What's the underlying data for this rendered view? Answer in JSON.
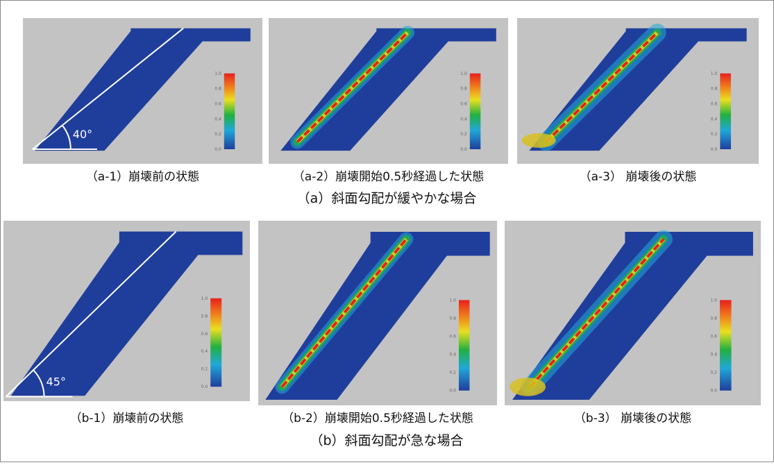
{
  "figure": {
    "rows": [
      {
        "caption": "（a）斜面勾配が緩やかな場合",
        "panels": [
          {
            "caption": "（a-1）崩壊前の状態",
            "angle": "40°"
          },
          {
            "caption": "（a-2）崩壊開始0.5秒経過した状態"
          },
          {
            "caption": "（a-3） 崩壊後の状態"
          }
        ]
      },
      {
        "caption": "（b）斜面勾配が急な場合",
        "panels": [
          {
            "caption": "（b-1）崩壊前の状態",
            "angle": "45°"
          },
          {
            "caption": "（b-2）崩壊開始0.5秒経過した状態"
          },
          {
            "caption": "（b-3） 崩壊後の状態"
          }
        ]
      }
    ],
    "colorbar_ticks": [
      "1.0",
      "0.8",
      "0.6",
      "0.4",
      "0.2",
      "0.0"
    ]
  }
}
